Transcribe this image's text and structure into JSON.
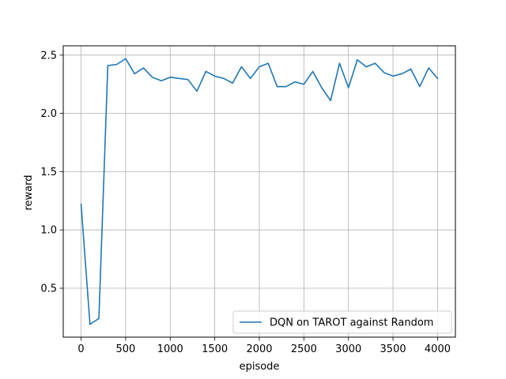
{
  "chart_data": {
    "type": "line",
    "title": "",
    "xlabel": "episode",
    "ylabel": "reward",
    "xlim": [
      -200,
      4200
    ],
    "ylim": [
      0.08,
      2.58
    ],
    "xticks": [
      0,
      500,
      1000,
      1500,
      2000,
      2500,
      3000,
      3500,
      4000
    ],
    "xtick_labels": [
      "0",
      "500",
      "1000",
      "1500",
      "2000",
      "2500",
      "3000",
      "3500",
      "4000"
    ],
    "yticks": [
      0.5,
      1.0,
      1.5,
      2.0,
      2.5
    ],
    "ytick_labels": [
      "0.5",
      "1.0",
      "1.5",
      "2.0",
      "2.5"
    ],
    "grid": true,
    "legend_position": "lower-right",
    "series_color": "#1f77b4",
    "series": [
      {
        "name": "DQN on TAROT against Random",
        "x": [
          0,
          100,
          200,
          300,
          400,
          500,
          600,
          700,
          800,
          900,
          1000,
          1100,
          1200,
          1300,
          1400,
          1500,
          1600,
          1700,
          1800,
          1900,
          2000,
          2100,
          2200,
          2300,
          2400,
          2500,
          2600,
          2700,
          2800,
          2900,
          3000,
          3100,
          3200,
          3300,
          3400,
          3500,
          3600,
          3700,
          3800,
          3900,
          4000
        ],
        "y": [
          1.22,
          0.19,
          0.24,
          2.41,
          2.42,
          2.47,
          2.34,
          2.39,
          2.31,
          2.28,
          2.31,
          2.3,
          2.29,
          2.19,
          2.36,
          2.32,
          2.3,
          2.26,
          2.4,
          2.3,
          2.4,
          2.43,
          2.23,
          2.23,
          2.27,
          2.25,
          2.36,
          2.22,
          2.11,
          2.43,
          2.22,
          2.46,
          2.4,
          2.43,
          2.35,
          2.32,
          2.34,
          2.38,
          2.23,
          2.39,
          2.3
        ]
      }
    ]
  }
}
